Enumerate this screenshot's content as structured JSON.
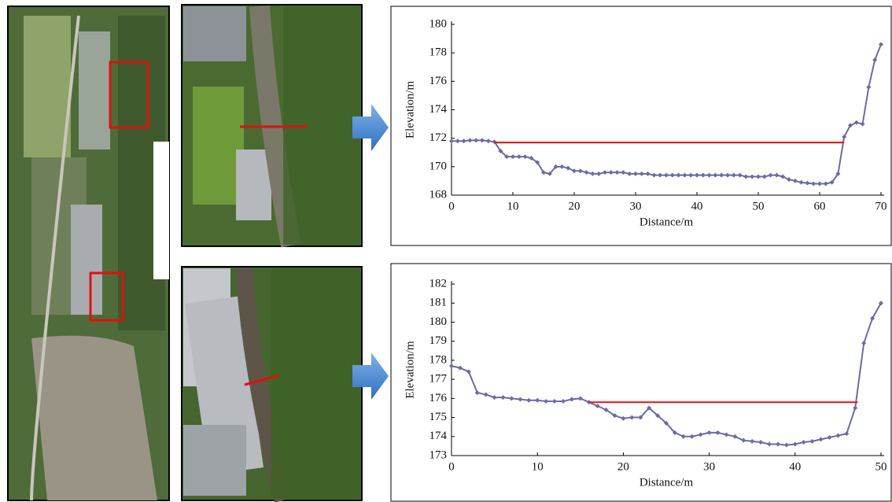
{
  "chart_data": [
    {
      "type": "line",
      "x_label": "Distance/m",
      "y_label": "Elevation/m",
      "xlim": [
        0,
        70
      ],
      "xticks": [
        0,
        10,
        20,
        30,
        40,
        50,
        60,
        70
      ],
      "ylim": [
        168,
        180
      ],
      "yticks": [
        168,
        170,
        172,
        174,
        176,
        178,
        180
      ],
      "series": [
        {
          "color": "#6b6ba8",
          "markers": true,
          "x": [
            0,
            1,
            2,
            3,
            4,
            5,
            6,
            7,
            8,
            9,
            10,
            11,
            12,
            13,
            14,
            15,
            16,
            17,
            18,
            19,
            20,
            21,
            22,
            23,
            24,
            25,
            26,
            27,
            28,
            29,
            30,
            31,
            32,
            33,
            34,
            35,
            36,
            37,
            38,
            39,
            40,
            41,
            42,
            43,
            44,
            45,
            46,
            47,
            48,
            49,
            50,
            51,
            52,
            53,
            54,
            55,
            56,
            57,
            58,
            59,
            60,
            61,
            62,
            63,
            64,
            65,
            66,
            67,
            68,
            69,
            70
          ],
          "values": [
            171.8,
            171.8,
            171.8,
            171.85,
            171.85,
            171.85,
            171.8,
            171.75,
            171.1,
            170.7,
            170.7,
            170.7,
            170.7,
            170.6,
            170.3,
            169.6,
            169.5,
            170.0,
            170.0,
            169.9,
            169.7,
            169.7,
            169.6,
            169.5,
            169.5,
            169.6,
            169.6,
            169.6,
            169.6,
            169.5,
            169.5,
            169.5,
            169.5,
            169.4,
            169.4,
            169.4,
            169.4,
            169.4,
            169.4,
            169.4,
            169.4,
            169.4,
            169.4,
            169.4,
            169.4,
            169.4,
            169.4,
            169.4,
            169.3,
            169.3,
            169.3,
            169.3,
            169.4,
            169.4,
            169.3,
            169.1,
            169.0,
            168.9,
            168.85,
            168.8,
            168.8,
            168.8,
            168.9,
            169.5,
            172.1,
            172.9,
            173.1,
            173.0,
            175.6,
            177.5,
            178.6
          ]
        },
        {
          "color": "#e02020",
          "markers": false,
          "x": [
            7,
            64
          ],
          "values": [
            171.7,
            171.7
          ]
        }
      ]
    },
    {
      "type": "line",
      "x_label": "Distance/m",
      "y_label": "Elevation/m",
      "xlim": [
        0,
        50
      ],
      "xticks": [
        0,
        10,
        20,
        30,
        40,
        50
      ],
      "ylim": [
        173,
        182
      ],
      "yticks": [
        173,
        174,
        175,
        176,
        177,
        178,
        179,
        180,
        181,
        182
      ],
      "series": [
        {
          "color": "#6b6ba8",
          "markers": true,
          "x": [
            0,
            1,
            2,
            3,
            4,
            5,
            6,
            7,
            8,
            9,
            10,
            11,
            12,
            13,
            14,
            15,
            16,
            17,
            18,
            19,
            20,
            21,
            22,
            23,
            24,
            25,
            26,
            27,
            28,
            29,
            30,
            31,
            32,
            33,
            34,
            35,
            36,
            37,
            38,
            39,
            40,
            41,
            42,
            43,
            44,
            45,
            46,
            47,
            48,
            49,
            50
          ],
          "values": [
            177.7,
            177.6,
            177.4,
            176.3,
            176.2,
            176.05,
            176.05,
            176.0,
            175.95,
            175.9,
            175.9,
            175.85,
            175.85,
            175.85,
            175.95,
            176.0,
            175.8,
            175.6,
            175.4,
            175.1,
            174.95,
            175.0,
            175.0,
            175.5,
            175.1,
            174.7,
            174.2,
            174.0,
            174.0,
            174.1,
            174.2,
            174.2,
            174.1,
            174.0,
            173.8,
            173.75,
            173.7,
            173.6,
            173.6,
            173.55,
            173.6,
            173.7,
            173.75,
            173.85,
            173.95,
            174.05,
            174.15,
            175.5,
            178.9,
            180.2,
            181.0
          ]
        },
        {
          "color": "#e02020",
          "markers": false,
          "x": [
            16,
            47.3
          ],
          "values": [
            175.8,
            175.8
          ]
        }
      ]
    }
  ]
}
